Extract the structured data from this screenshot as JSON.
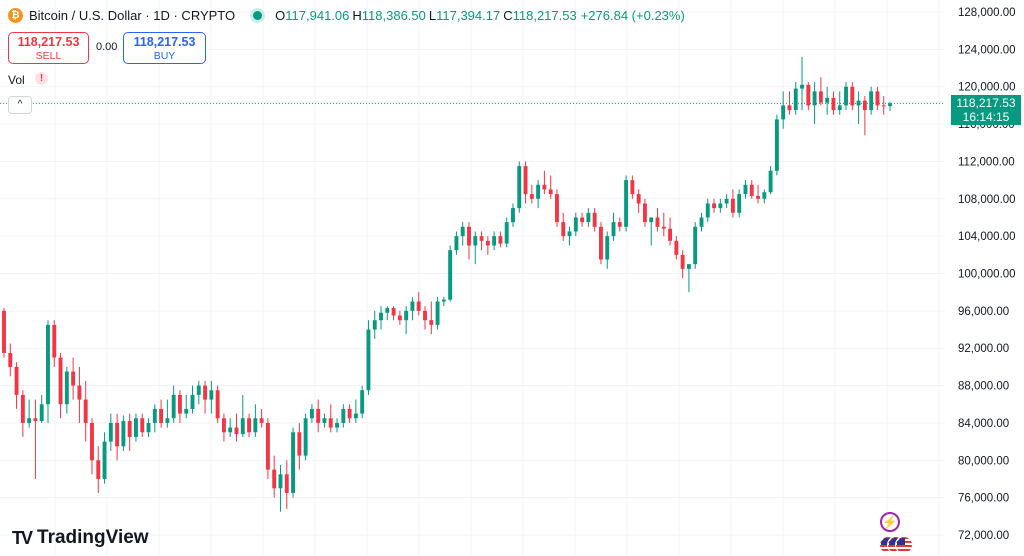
{
  "header": {
    "coin_glyph": "₿",
    "symbol_title": "Bitcoin / U.S. Dollar · 1D · CRYPTO",
    "ohlc": [
      {
        "key": "O",
        "value": "117,941.06"
      },
      {
        "key": "H",
        "value": "118,386.50"
      },
      {
        "key": "L",
        "value": "117,394.17"
      },
      {
        "key": "C",
        "value": "118,217.53"
      }
    ],
    "change": "+276.84 (+0.23%)"
  },
  "trade": {
    "sell_price": "118,217.53",
    "sell_label": "SELL",
    "spread": "0.00",
    "buy_price": "118,217.53",
    "buy_label": "BUY"
  },
  "volume": {
    "label": "Vol",
    "warning_glyph": "!"
  },
  "controls": {
    "collapse_glyph": "^"
  },
  "price_tag": {
    "price": "118,217.53",
    "countdown": "16:14:15"
  },
  "brand": {
    "logo_glyph": "TV",
    "name": "TradingView"
  },
  "widgets": {
    "flash_glyph": "⚡",
    "flash_icon": "lightning-icon",
    "flags_icon": "us-flag-icon"
  },
  "colors": {
    "up": "#089981",
    "down": "#f23645",
    "grid": "#f0f3fa",
    "text": "#131722"
  },
  "chart_data": {
    "type": "candlestick",
    "ylim": [
      70000,
      130000
    ],
    "yticks": [
      72000,
      76000,
      80000,
      84000,
      88000,
      92000,
      96000,
      100000,
      104000,
      108000,
      112000,
      116000,
      120000,
      124000,
      128000
    ],
    "ytick_labels": [
      "72,000.00",
      "76,000.00",
      "80,000.00",
      "84,000.00",
      "88,000.00",
      "92,000.00",
      "96,000.00",
      "100,000.00",
      "104,000.00",
      "108,000.00",
      "112,000.00",
      "116,000.00",
      "120,000.00",
      "124,000.00",
      "128,000.00"
    ],
    "last_price": 118217.53,
    "grid": true,
    "candles": [
      {
        "o": 96000,
        "h": 96300,
        "l": 91000,
        "c": 91500
      },
      {
        "o": 91500,
        "h": 92500,
        "l": 89000,
        "c": 90000
      },
      {
        "o": 90000,
        "h": 90500,
        "l": 85500,
        "c": 87000
      },
      {
        "o": 87000,
        "h": 87500,
        "l": 82500,
        "c": 84000
      },
      {
        "o": 84000,
        "h": 86500,
        "l": 83500,
        "c": 84500
      },
      {
        "o": 84500,
        "h": 86500,
        "l": 78000,
        "c": 84200
      },
      {
        "o": 84200,
        "h": 87000,
        "l": 84000,
        "c": 86000
      },
      {
        "o": 86000,
        "h": 95000,
        "l": 84000,
        "c": 94500
      },
      {
        "o": 94500,
        "h": 95000,
        "l": 90000,
        "c": 91000
      },
      {
        "o": 91000,
        "h": 91500,
        "l": 84500,
        "c": 86000
      },
      {
        "o": 86000,
        "h": 90000,
        "l": 85000,
        "c": 89500
      },
      {
        "o": 89500,
        "h": 91000,
        "l": 86500,
        "c": 88000
      },
      {
        "o": 88000,
        "h": 90000,
        "l": 84000,
        "c": 86500
      },
      {
        "o": 86500,
        "h": 88500,
        "l": 82000,
        "c": 84000
      },
      {
        "o": 84000,
        "h": 84500,
        "l": 78500,
        "c": 80000
      },
      {
        "o": 80000,
        "h": 81500,
        "l": 76500,
        "c": 78000
      },
      {
        "o": 78000,
        "h": 83000,
        "l": 77500,
        "c": 82000
      },
      {
        "o": 82000,
        "h": 85000,
        "l": 81000,
        "c": 84000
      },
      {
        "o": 84000,
        "h": 85000,
        "l": 80000,
        "c": 81500
      },
      {
        "o": 81500,
        "h": 84800,
        "l": 81000,
        "c": 84200
      },
      {
        "o": 84200,
        "h": 85000,
        "l": 81000,
        "c": 82500
      },
      {
        "o": 82500,
        "h": 85000,
        "l": 82000,
        "c": 84500
      },
      {
        "o": 84500,
        "h": 85000,
        "l": 82500,
        "c": 83000
      },
      {
        "o": 83000,
        "h": 84500,
        "l": 82500,
        "c": 84000
      },
      {
        "o": 84000,
        "h": 86000,
        "l": 83000,
        "c": 85500
      },
      {
        "o": 85500,
        "h": 86500,
        "l": 83500,
        "c": 84000
      },
      {
        "o": 84000,
        "h": 86500,
        "l": 83500,
        "c": 84500
      },
      {
        "o": 84500,
        "h": 88000,
        "l": 84000,
        "c": 87000
      },
      {
        "o": 87000,
        "h": 87500,
        "l": 84000,
        "c": 85000
      },
      {
        "o": 85000,
        "h": 87000,
        "l": 84500,
        "c": 85500
      },
      {
        "o": 85500,
        "h": 88000,
        "l": 85000,
        "c": 87000
      },
      {
        "o": 87000,
        "h": 88500,
        "l": 86000,
        "c": 88000
      },
      {
        "o": 88000,
        "h": 88500,
        "l": 85000,
        "c": 86500
      },
      {
        "o": 86500,
        "h": 88500,
        "l": 85000,
        "c": 87500
      },
      {
        "o": 87500,
        "h": 88000,
        "l": 84000,
        "c": 84500
      },
      {
        "o": 84500,
        "h": 85000,
        "l": 82000,
        "c": 83000
      },
      {
        "o": 83000,
        "h": 84500,
        "l": 82500,
        "c": 83500
      },
      {
        "o": 83500,
        "h": 85000,
        "l": 82000,
        "c": 82800
      },
      {
        "o": 82800,
        "h": 87000,
        "l": 82500,
        "c": 84500
      },
      {
        "o": 84500,
        "h": 85000,
        "l": 82500,
        "c": 83000
      },
      {
        "o": 83000,
        "h": 86000,
        "l": 82500,
        "c": 84500
      },
      {
        "o": 84500,
        "h": 85500,
        "l": 83500,
        "c": 84000
      },
      {
        "o": 84000,
        "h": 84500,
        "l": 78000,
        "c": 79000
      },
      {
        "o": 79000,
        "h": 80500,
        "l": 76000,
        "c": 77000
      },
      {
        "o": 77000,
        "h": 79500,
        "l": 74500,
        "c": 78500
      },
      {
        "o": 78500,
        "h": 80000,
        "l": 74800,
        "c": 76500
      },
      {
        "o": 76500,
        "h": 83500,
        "l": 76000,
        "c": 83000
      },
      {
        "o": 83000,
        "h": 84000,
        "l": 79000,
        "c": 80500
      },
      {
        "o": 80500,
        "h": 85000,
        "l": 80000,
        "c": 84500
      },
      {
        "o": 84500,
        "h": 86000,
        "l": 84000,
        "c": 85500
      },
      {
        "o": 85500,
        "h": 86500,
        "l": 83000,
        "c": 84000
      },
      {
        "o": 84000,
        "h": 85000,
        "l": 83500,
        "c": 84500
      },
      {
        "o": 84500,
        "h": 86000,
        "l": 83000,
        "c": 83500
      },
      {
        "o": 83500,
        "h": 84500,
        "l": 83000,
        "c": 84000
      },
      {
        "o": 84000,
        "h": 86000,
        "l": 83500,
        "c": 85500
      },
      {
        "o": 85500,
        "h": 86000,
        "l": 84000,
        "c": 84500
      },
      {
        "o": 84500,
        "h": 86500,
        "l": 84000,
        "c": 85000
      },
      {
        "o": 85000,
        "h": 88000,
        "l": 84500,
        "c": 87500
      },
      {
        "o": 87500,
        "h": 95000,
        "l": 87000,
        "c": 94000
      },
      {
        "o": 94000,
        "h": 96000,
        "l": 93000,
        "c": 95000
      },
      {
        "o": 95000,
        "h": 96500,
        "l": 94000,
        "c": 95800
      },
      {
        "o": 95800,
        "h": 96500,
        "l": 95000,
        "c": 96300
      },
      {
        "o": 96300,
        "h": 96500,
        "l": 95000,
        "c": 95500
      },
      {
        "o": 95500,
        "h": 96000,
        "l": 94500,
        "c": 95000
      },
      {
        "o": 95000,
        "h": 96500,
        "l": 93500,
        "c": 96000
      },
      {
        "o": 96000,
        "h": 97500,
        "l": 95000,
        "c": 97000
      },
      {
        "o": 97000,
        "h": 98000,
        "l": 95500,
        "c": 96000
      },
      {
        "o": 96000,
        "h": 96500,
        "l": 94000,
        "c": 95000
      },
      {
        "o": 95000,
        "h": 97000,
        "l": 93500,
        "c": 94500
      },
      {
        "o": 94500,
        "h": 97500,
        "l": 94000,
        "c": 97000
      },
      {
        "o": 97000,
        "h": 97500,
        "l": 96500,
        "c": 97200
      },
      {
        "o": 97200,
        "h": 103000,
        "l": 97000,
        "c": 102500
      },
      {
        "o": 102500,
        "h": 104500,
        "l": 102000,
        "c": 104000
      },
      {
        "o": 104000,
        "h": 105500,
        "l": 103000,
        "c": 105000
      },
      {
        "o": 105000,
        "h": 105500,
        "l": 101500,
        "c": 103000
      },
      {
        "o": 103000,
        "h": 104500,
        "l": 101000,
        "c": 104000
      },
      {
        "o": 104000,
        "h": 104500,
        "l": 102500,
        "c": 103500
      },
      {
        "o": 103500,
        "h": 104000,
        "l": 102000,
        "c": 103000
      },
      {
        "o": 103000,
        "h": 104500,
        "l": 102500,
        "c": 104000
      },
      {
        "o": 104000,
        "h": 104500,
        "l": 102800,
        "c": 103200
      },
      {
        "o": 103200,
        "h": 106000,
        "l": 102800,
        "c": 105500
      },
      {
        "o": 105500,
        "h": 107500,
        "l": 105000,
        "c": 107000
      },
      {
        "o": 107000,
        "h": 112000,
        "l": 106500,
        "c": 111500
      },
      {
        "o": 111500,
        "h": 112000,
        "l": 107500,
        "c": 108500
      },
      {
        "o": 108500,
        "h": 109500,
        "l": 107500,
        "c": 108000
      },
      {
        "o": 108000,
        "h": 110000,
        "l": 107000,
        "c": 109500
      },
      {
        "o": 109500,
        "h": 111000,
        "l": 108500,
        "c": 109000
      },
      {
        "o": 109000,
        "h": 110500,
        "l": 108000,
        "c": 108500
      },
      {
        "o": 108500,
        "h": 109000,
        "l": 105000,
        "c": 105500
      },
      {
        "o": 105500,
        "h": 106500,
        "l": 103500,
        "c": 104000
      },
      {
        "o": 104000,
        "h": 105000,
        "l": 103000,
        "c": 104500
      },
      {
        "o": 104500,
        "h": 106500,
        "l": 104000,
        "c": 106000
      },
      {
        "o": 106000,
        "h": 106500,
        "l": 105000,
        "c": 105500
      },
      {
        "o": 105500,
        "h": 107000,
        "l": 105000,
        "c": 106500
      },
      {
        "o": 106500,
        "h": 107000,
        "l": 104500,
        "c": 105000
      },
      {
        "o": 105000,
        "h": 105500,
        "l": 101000,
        "c": 101500
      },
      {
        "o": 101500,
        "h": 104500,
        "l": 100500,
        "c": 104000
      },
      {
        "o": 104000,
        "h": 106500,
        "l": 103500,
        "c": 105500
      },
      {
        "o": 105500,
        "h": 106000,
        "l": 104500,
        "c": 105000
      },
      {
        "o": 105000,
        "h": 110500,
        "l": 104500,
        "c": 110000
      },
      {
        "o": 110000,
        "h": 110500,
        "l": 108000,
        "c": 108500
      },
      {
        "o": 108500,
        "h": 109000,
        "l": 106500,
        "c": 107500
      },
      {
        "o": 107500,
        "h": 108000,
        "l": 105000,
        "c": 105500
      },
      {
        "o": 105500,
        "h": 106000,
        "l": 103000,
        "c": 106000
      },
      {
        "o": 106000,
        "h": 107000,
        "l": 104500,
        "c": 105000
      },
      {
        "o": 105000,
        "h": 106500,
        "l": 104000,
        "c": 104800
      },
      {
        "o": 104800,
        "h": 106000,
        "l": 103000,
        "c": 103500
      },
      {
        "o": 103500,
        "h": 104000,
        "l": 101500,
        "c": 102000
      },
      {
        "o": 102000,
        "h": 102500,
        "l": 99500,
        "c": 100500
      },
      {
        "o": 100500,
        "h": 101000,
        "l": 98000,
        "c": 101000
      },
      {
        "o": 101000,
        "h": 105500,
        "l": 100500,
        "c": 105000
      },
      {
        "o": 105000,
        "h": 106500,
        "l": 104500,
        "c": 106000
      },
      {
        "o": 106000,
        "h": 108000,
        "l": 105500,
        "c": 107500
      },
      {
        "o": 107500,
        "h": 108000,
        "l": 106500,
        "c": 107000
      },
      {
        "o": 107000,
        "h": 108000,
        "l": 106500,
        "c": 107500
      },
      {
        "o": 107500,
        "h": 108500,
        "l": 107000,
        "c": 108000
      },
      {
        "o": 108000,
        "h": 109000,
        "l": 106000,
        "c": 106500
      },
      {
        "o": 106500,
        "h": 109000,
        "l": 106000,
        "c": 108500
      },
      {
        "o": 108500,
        "h": 110000,
        "l": 108000,
        "c": 109500
      },
      {
        "o": 109500,
        "h": 110000,
        "l": 108000,
        "c": 108300
      },
      {
        "o": 108300,
        "h": 109500,
        "l": 107500,
        "c": 108000
      },
      {
        "o": 108000,
        "h": 109000,
        "l": 107500,
        "c": 108700
      },
      {
        "o": 108700,
        "h": 111500,
        "l": 108500,
        "c": 111000
      },
      {
        "o": 111000,
        "h": 117000,
        "l": 110500,
        "c": 116500
      },
      {
        "o": 116500,
        "h": 119500,
        "l": 115500,
        "c": 118000
      },
      {
        "o": 118000,
        "h": 119500,
        "l": 117000,
        "c": 117500
      },
      {
        "o": 117500,
        "h": 120500,
        "l": 117000,
        "c": 119800
      },
      {
        "o": 119800,
        "h": 123200,
        "l": 117500,
        "c": 120200
      },
      {
        "o": 120200,
        "h": 120500,
        "l": 117500,
        "c": 118000
      },
      {
        "o": 118000,
        "h": 120500,
        "l": 116000,
        "c": 119500
      },
      {
        "o": 119500,
        "h": 121000,
        "l": 118000,
        "c": 118300
      },
      {
        "o": 118300,
        "h": 120000,
        "l": 117000,
        "c": 118800
      },
      {
        "o": 118800,
        "h": 119500,
        "l": 117000,
        "c": 117500
      },
      {
        "o": 117500,
        "h": 119500,
        "l": 117000,
        "c": 118000
      },
      {
        "o": 118000,
        "h": 120500,
        "l": 117500,
        "c": 120000
      },
      {
        "o": 120000,
        "h": 120500,
        "l": 117500,
        "c": 118000
      },
      {
        "o": 118000,
        "h": 119500,
        "l": 116000,
        "c": 118500
      },
      {
        "o": 118500,
        "h": 119000,
        "l": 114800,
        "c": 117500
      },
      {
        "o": 117500,
        "h": 120000,
        "l": 117000,
        "c": 119500
      },
      {
        "o": 119500,
        "h": 120000,
        "l": 117500,
        "c": 118000
      },
      {
        "o": 118000,
        "h": 119000,
        "l": 117000,
        "c": 117941.06
      },
      {
        "o": 117941.06,
        "h": 118386.5,
        "l": 117394.17,
        "c": 118217.53
      }
    ]
  }
}
